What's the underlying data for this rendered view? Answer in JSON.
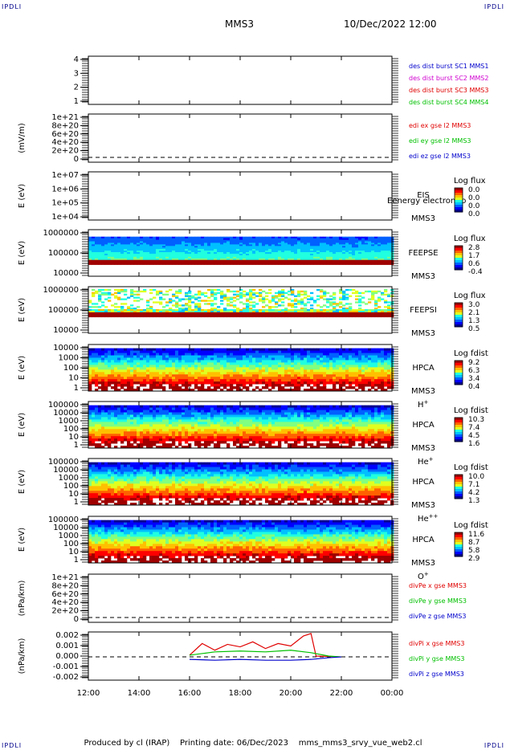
{
  "header": {
    "corner_left_top": "IPDLI",
    "corner_right_top": "IPDLI",
    "corner_left_bottom": "IPDLI",
    "corner_right_bottom": "IPDLI",
    "spacecraft": "MMS3",
    "datetime": "10/Dec/2022 12:00"
  },
  "footer": {
    "produced_by": "Produced by cl (IRAP)",
    "printing_date": "Printing date: 06/Dec/2023",
    "file": "mms_mms3_srvy_vue_web2.cl"
  },
  "x_axis": {
    "ticks": [
      "12:00",
      "14:00",
      "16:00",
      "18:00",
      "20:00",
      "22:00",
      "00:00"
    ],
    "range_hours": [
      12,
      24
    ]
  },
  "colors": {
    "blue": "#0000cc",
    "magenta": "#d000d0",
    "red": "#e00000",
    "green": "#00c000"
  },
  "chart_data": [
    {
      "type": "line",
      "name": "burst",
      "ylabel": "",
      "yticks": [
        "4",
        "3",
        "2",
        "1"
      ],
      "legend": [
        {
          "label": "des dist burst SC1 MMS1",
          "color": "#0000cc"
        },
        {
          "label": "des dist burst SC2 MMS2",
          "color": "#d000d0"
        },
        {
          "label": "des dist burst SC3 MMS3",
          "color": "#e00000"
        },
        {
          "label": "des dist burst SC4 MMS4",
          "color": "#00c000"
        }
      ],
      "series": []
    },
    {
      "type": "line",
      "name": "edi",
      "ylabel": "(mV/m)",
      "yticks": [
        "1e+21",
        "8e+20",
        "6e+20",
        "4e+20",
        "2e+20",
        "0"
      ],
      "legend": [
        {
          "label": "edi ex gse l2 MMS3",
          "color": "#e00000"
        },
        {
          "label": "edi ey gse l2 MMS3",
          "color": "#00c000"
        },
        {
          "label": "edi ez gse l2 MMS3",
          "color": "#0000cc"
        }
      ],
      "series": []
    },
    {
      "type": "heatmap",
      "name": "eis",
      "ylabel": "E (eV)",
      "yticks": [
        "1e+07",
        "1e+06",
        "1e+05",
        "1e+04"
      ],
      "label_lines": [
        "EIS",
        "MMS3"
      ],
      "overlay_text": "Eenergy electron to",
      "colorbar_title": "Log flux",
      "colorbar_ticks": [
        "0.0",
        "0.0",
        "0.0",
        "0.0"
      ],
      "data_present": false
    },
    {
      "type": "heatmap",
      "name": "feepse",
      "ylabel": "E (eV)",
      "yticks": [
        "1000000",
        "100000",
        "10000"
      ],
      "label_lines": [
        "FEEPSE",
        "MMS3"
      ],
      "colorbar_title": "Log flux",
      "colorbar_ticks": [
        "2.8",
        "1.7",
        "0.6",
        "-0.4"
      ],
      "data_present": true,
      "coverage_hours": [
        12,
        24
      ]
    },
    {
      "type": "heatmap",
      "name": "feepsi",
      "ylabel": "E (eV)",
      "yticks": [
        "1000000",
        "100000",
        "10000"
      ],
      "label_lines": [
        "FEEPSI",
        "MMS3"
      ],
      "colorbar_title": "Log flux",
      "colorbar_ticks": [
        "3.0",
        "2.1",
        "1.3",
        "0.5"
      ],
      "data_present": true,
      "coverage_hours": [
        12,
        24
      ]
    },
    {
      "type": "heatmap",
      "name": "hpca-h",
      "ylabel": "E (eV)",
      "yticks": [
        "10000",
        "1000",
        "100",
        "10",
        "1"
      ],
      "label_lines": [
        "HPCA",
        "MMS3"
      ],
      "species": "H",
      "species_sup": "+",
      "colorbar_title": "Log fdist",
      "colorbar_ticks": [
        "9.2",
        "6.3",
        "3.4",
        "0.4"
      ],
      "data_present": true,
      "coverage_hours": [
        12,
        24
      ]
    },
    {
      "type": "heatmap",
      "name": "hpca-he",
      "ylabel": "E (eV)",
      "yticks": [
        "100000",
        "10000",
        "1000",
        "100",
        "10",
        "1"
      ],
      "label_lines": [
        "HPCA",
        "MMS3"
      ],
      "species": "He",
      "species_sup": "+",
      "colorbar_title": "Log fdist",
      "colorbar_ticks": [
        "10.3",
        "7.4",
        "4.5",
        "1.6"
      ],
      "data_present": true,
      "coverage_hours": [
        12,
        24
      ]
    },
    {
      "type": "heatmap",
      "name": "hpca-hepp",
      "ylabel": "E (eV)",
      "yticks": [
        "100000",
        "10000",
        "1000",
        "100",
        "10",
        "1"
      ],
      "label_lines": [
        "HPCA",
        "MMS3"
      ],
      "species": "He",
      "species_sup": "++",
      "colorbar_title": "Log fdist",
      "colorbar_ticks": [
        "10.0",
        "7.1",
        "4.2",
        "1.3"
      ],
      "data_present": true,
      "coverage_hours": [
        12,
        24
      ]
    },
    {
      "type": "heatmap",
      "name": "hpca-o",
      "ylabel": "E (eV)",
      "yticks": [
        "100000",
        "10000",
        "1000",
        "100",
        "10",
        "1"
      ],
      "label_lines": [
        "HPCA",
        "MMS3"
      ],
      "species": "O",
      "species_sup": "+",
      "colorbar_title": "Log fdist",
      "colorbar_ticks": [
        "11.6",
        "8.7",
        "5.8",
        "2.9"
      ],
      "data_present": true,
      "coverage_hours": [
        12,
        24
      ]
    },
    {
      "type": "line",
      "name": "divpe",
      "ylabel": "(nPa/km)",
      "yticks": [
        "1e+21",
        "8e+20",
        "6e+20",
        "4e+20",
        "2e+20",
        "0"
      ],
      "legend": [
        {
          "label": "divPe x gse MMS3",
          "color": "#e00000"
        },
        {
          "label": "divPe y gse MMS3",
          "color": "#00c000"
        },
        {
          "label": "divPe z gse MMS3",
          "color": "#0000cc"
        }
      ],
      "series": []
    },
    {
      "type": "line",
      "name": "divpi",
      "ylabel": "(nPa/km)",
      "yticks": [
        "0.002",
        "0.001",
        "0.000",
        "-0.001",
        "-0.002"
      ],
      "ylim": [
        -0.0024,
        0.0026
      ],
      "legend": [
        {
          "label": "divPi x gse MMS3",
          "color": "#e00000"
        },
        {
          "label": "divPi y gse MMS3",
          "color": "#00c000"
        },
        {
          "label": "divPi z gse MMS3",
          "color": "#0000cc"
        }
      ],
      "coverage_hours": [
        16.0,
        22.0
      ],
      "series": [
        {
          "name": "divPi x gse MMS3",
          "x": [
            16.0,
            16.5,
            17.0,
            17.5,
            18.0,
            18.5,
            19.0,
            19.5,
            20.0,
            20.5,
            20.8,
            21.0,
            22.0
          ],
          "y": [
            0.0002,
            0.0016,
            0.0008,
            0.0015,
            0.0012,
            0.0018,
            0.001,
            0.0016,
            0.0013,
            0.0025,
            0.0028,
            0.0001,
            0.0
          ]
        },
        {
          "name": "divPi y gse MMS3",
          "x": [
            16.0,
            17.0,
            18.0,
            19.0,
            20.0,
            20.8,
            21.5,
            22.0
          ],
          "y": [
            0.0002,
            0.0006,
            0.0007,
            0.0006,
            0.0008,
            0.0005,
            0.0001,
            0.0
          ]
        },
        {
          "name": "divPi z gse MMS3",
          "x": [
            16.0,
            17.0,
            18.0,
            19.0,
            20.0,
            20.8,
            21.5,
            22.0
          ],
          "y": [
            -0.0003,
            -0.0004,
            -0.0003,
            -0.0004,
            -0.0004,
            -0.0003,
            -0.0001,
            0.0
          ]
        }
      ]
    }
  ]
}
